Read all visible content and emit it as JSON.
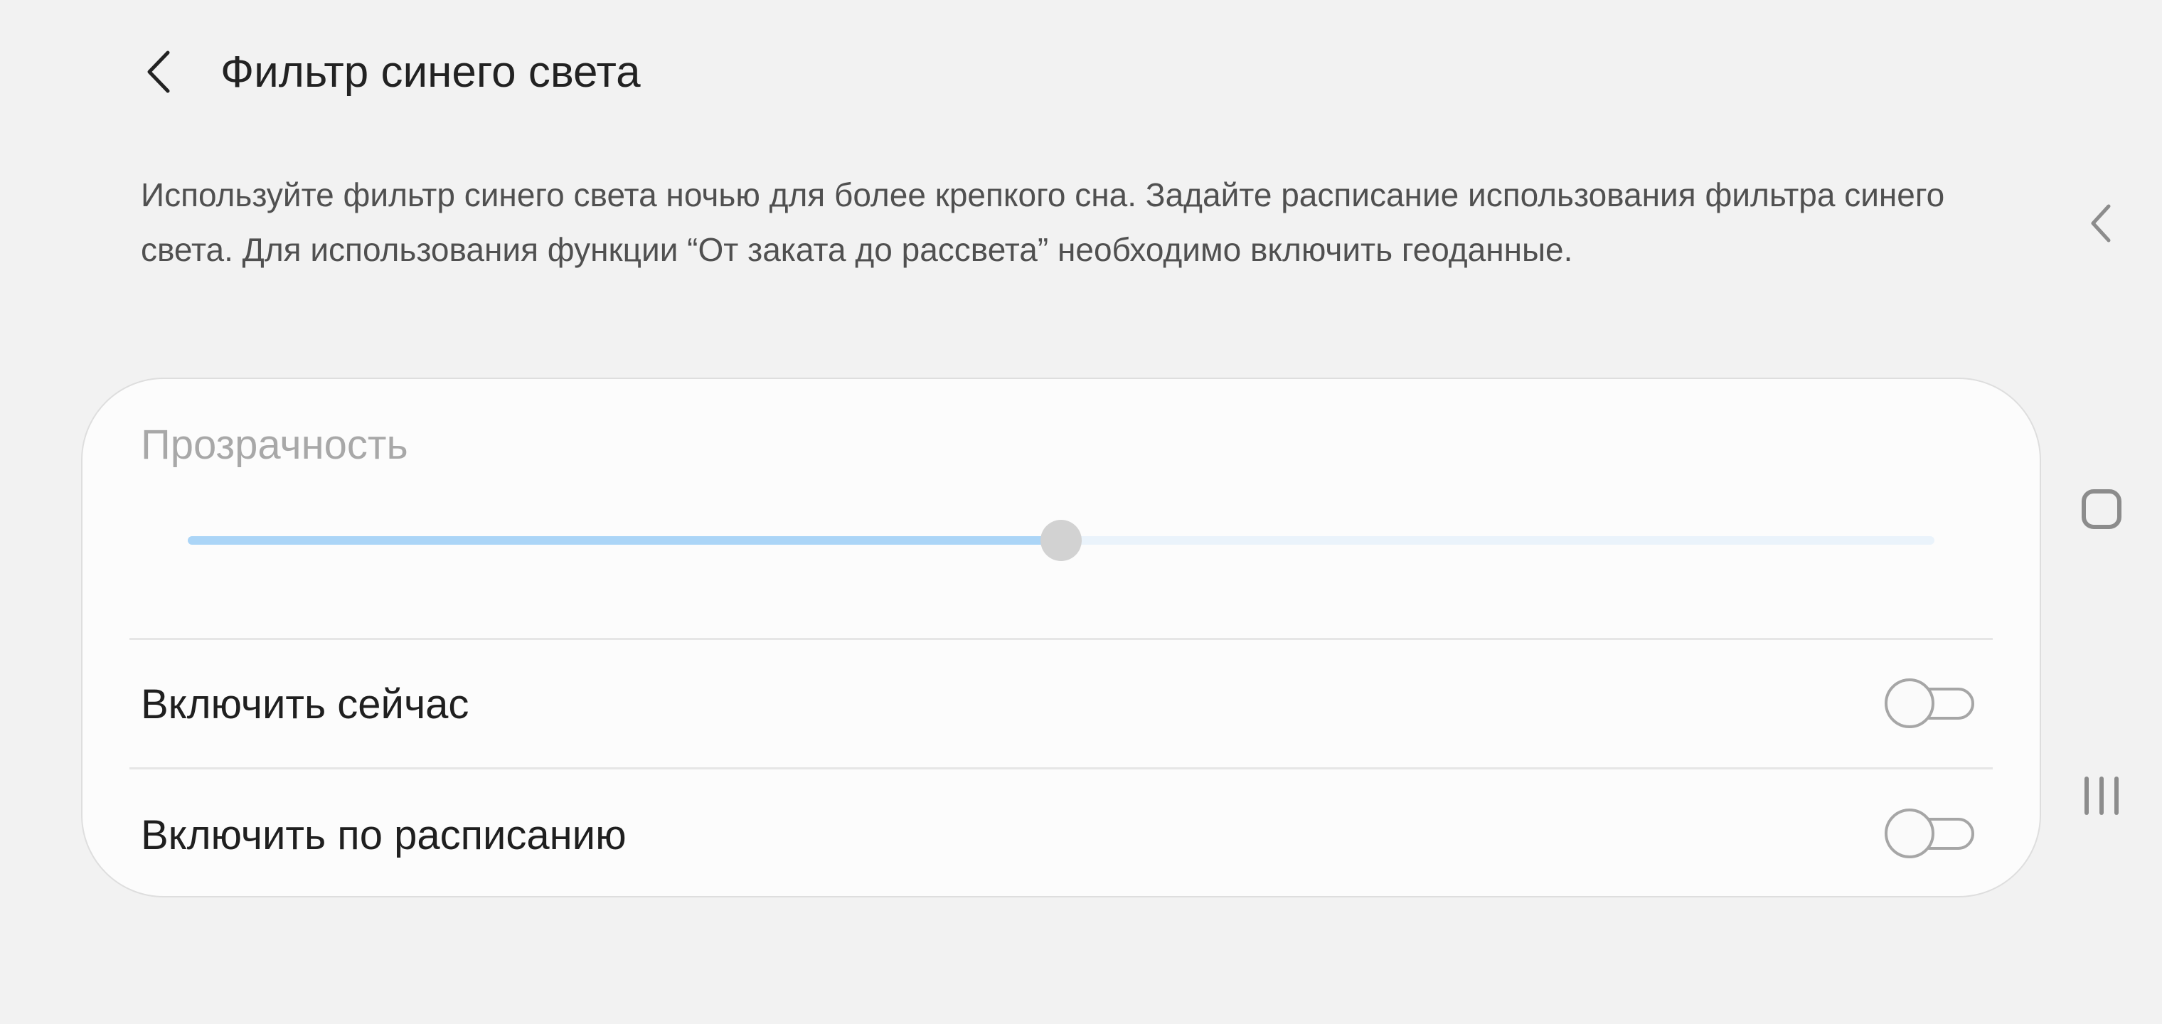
{
  "header": {
    "title": "Фильтр синего света",
    "back_icon": "chevron-left-icon"
  },
  "description": "Используйте фильтр синего света ночью для более крепкого сна. Задайте расписание использования фильтра синего света. Для использования функции “От заката до рассвета” необходимо включить геоданные.",
  "opacity": {
    "label": "Прозрачность",
    "value_fraction": 0.5,
    "accent": "#abd5f7"
  },
  "rows": [
    {
      "label": "Включить сейчас",
      "enabled": false
    },
    {
      "label": "Включить по расписанию",
      "enabled": false
    }
  ],
  "navbar": {
    "items": [
      "back-icon",
      "home-icon",
      "recents-icon"
    ]
  }
}
